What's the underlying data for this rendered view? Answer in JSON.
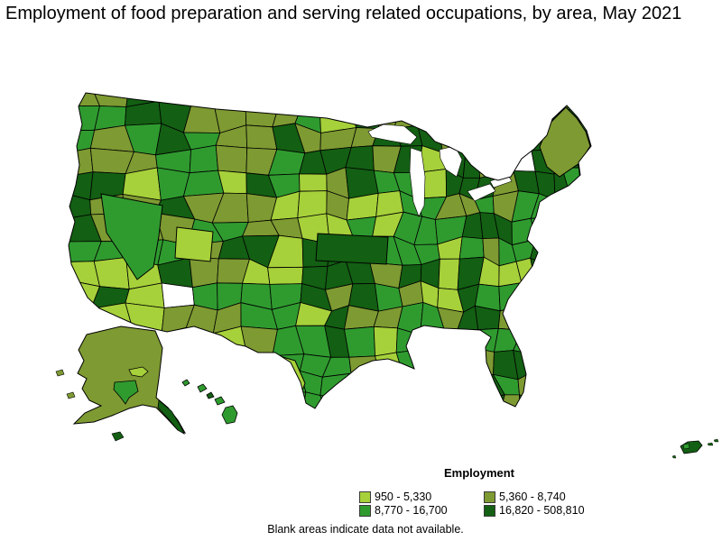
{
  "title": "Employment of food preparation and serving related occupations, by area, May 2021",
  "legend": {
    "title": "Employment",
    "classes": [
      {
        "label": "950 - 5,330",
        "min": 950,
        "max": 5330,
        "color": "#a6d13a"
      },
      {
        "label": "5,360 - 8,740",
        "min": 5360,
        "max": 8740,
        "color": "#7e9a32"
      },
      {
        "label": "8,770 - 16,700",
        "min": 8770,
        "max": 16700,
        "color": "#2f9b2f"
      },
      {
        "label": "16,820 - 508,810",
        "min": 16820,
        "max": 508810,
        "color": "#135f13"
      }
    ]
  },
  "note": "Blank areas indicate data not available.",
  "map": {
    "seed": 20210521,
    "border_color": "#000000",
    "water_color": "#ffffff",
    "no_data_color": "#ffffff",
    "regions": [
      "continental-us",
      "alaska",
      "hawaii",
      "puerto-rico"
    ]
  },
  "chart_data": {
    "type": "heatmap",
    "subtype": "choropleth-map",
    "title": "Employment of food preparation and serving related occupations, by area, May 2021",
    "legend_title": "Employment",
    "classes": [
      {
        "range": "950 - 5,330",
        "color": "#a6d13a"
      },
      {
        "range": "5,360 - 8,740",
        "color": "#7e9a32"
      },
      {
        "range": "8,770 - 16,700",
        "color": "#2f9b2f"
      },
      {
        "range": "16,820 - 508,810",
        "color": "#135f13"
      }
    ],
    "note": "Blank areas indicate data not available.",
    "legend_position": "bottom-right"
  }
}
